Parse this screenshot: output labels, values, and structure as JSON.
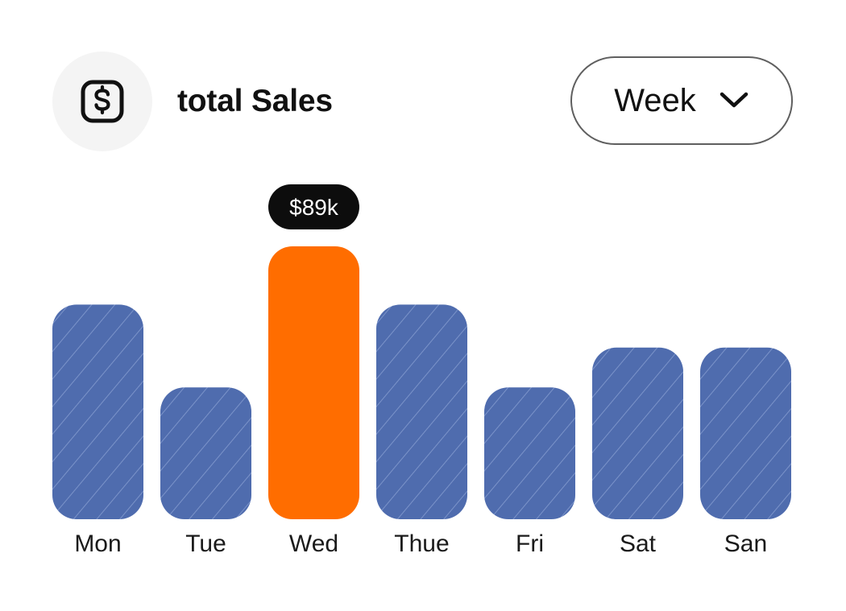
{
  "header": {
    "title": "total Sales",
    "icon": "dollar-square-icon",
    "period": "Week",
    "period_icon": "chevron-down-icon"
  },
  "colors": {
    "bar": "#4f6cae",
    "bar_stripe": "#7b93c9",
    "highlight": "#ff6d00",
    "tooltip_bg": "#0d0d0d",
    "tooltip_text": "#ffffff",
    "label": "#1a1a1a"
  },
  "chart_data": {
    "type": "bar",
    "title": "total Sales",
    "categories": [
      "Mon",
      "Tue",
      "Wed",
      "Thue",
      "Fri",
      "Sat",
      "San"
    ],
    "values": [
      70,
      43,
      89,
      70,
      43,
      56,
      56
    ],
    "unit": "$k",
    "highlight_index": 2,
    "highlight_label": "$89k",
    "ylim": [
      0,
      89
    ],
    "grid": false,
    "legend": "none"
  }
}
